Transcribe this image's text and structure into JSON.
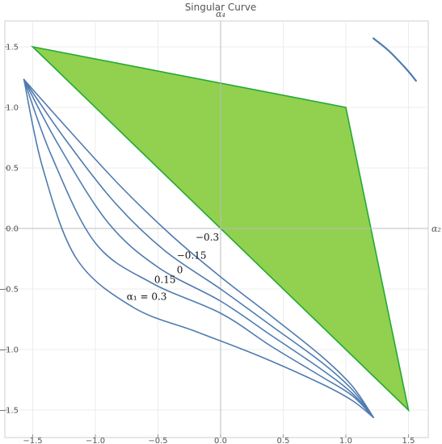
{
  "chart_data": {
    "type": "line",
    "title": "Singular Curve",
    "xlabel": "α₂",
    "ylabel": "α₄",
    "xlim": [
      -1.65,
      1.65
    ],
    "ylim": [
      -1.65,
      1.65
    ],
    "grid": true,
    "x_ticks": [
      {
        "value": -1.5,
        "label": "−1.5"
      },
      {
        "value": -1.0,
        "label": "−1.0"
      },
      {
        "value": -0.5,
        "label": "−0.5"
      },
      {
        "value": 0.0,
        "label": "0.0"
      },
      {
        "value": 0.5,
        "label": "0.5"
      },
      {
        "value": 1.0,
        "label": "1.0"
      },
      {
        "value": 1.5,
        "label": "1.5"
      }
    ],
    "y_ticks": [
      {
        "value": 1.5,
        "label": "1.5"
      },
      {
        "value": 1.0,
        "label": "1.0"
      },
      {
        "value": 0.5,
        "label": "0.5"
      },
      {
        "value": 0.0,
        "label": "0.0"
      },
      {
        "value": -0.5,
        "label": "−0.5"
      },
      {
        "value": -1.0,
        "label": "−1.0"
      },
      {
        "value": -1.5,
        "label": "−1.5"
      }
    ],
    "region": {
      "fill": "#92d050",
      "stroke": "#22aa33",
      "vertices": [
        [
          -1.5,
          1.5
        ],
        [
          1.0,
          1.0
        ],
        [
          1.5,
          -1.5
        ]
      ]
    },
    "line_color": "#4f7bb0",
    "series": [
      {
        "name": "−0.3",
        "points": [
          [
            -1.57,
            1.23
          ],
          [
            -1.2,
            0.8
          ],
          [
            -0.8,
            0.35
          ],
          [
            -0.4,
            -0.05
          ],
          [
            0.0,
            -0.4
          ],
          [
            0.4,
            -0.72
          ],
          [
            0.8,
            -1.05
          ],
          [
            1.05,
            -1.3
          ],
          [
            1.22,
            -1.56
          ]
        ]
      },
      {
        "name": "−0.15",
        "points": [
          [
            -1.57,
            1.23
          ],
          [
            -1.25,
            0.75
          ],
          [
            -0.85,
            0.22
          ],
          [
            -0.45,
            -0.18
          ],
          [
            0.0,
            -0.5
          ],
          [
            0.4,
            -0.8
          ],
          [
            0.8,
            -1.1
          ],
          [
            1.05,
            -1.33
          ],
          [
            1.22,
            -1.56
          ]
        ]
      },
      {
        "name": "0",
        "points": [
          [
            -1.57,
            1.23
          ],
          [
            -1.3,
            0.7
          ],
          [
            -0.9,
            0.05
          ],
          [
            -0.5,
            -0.32
          ],
          [
            0.0,
            -0.6
          ],
          [
            0.4,
            -0.88
          ],
          [
            0.8,
            -1.16
          ],
          [
            1.05,
            -1.36
          ],
          [
            1.22,
            -1.56
          ]
        ]
      },
      {
        "name": "0.15",
        "points": [
          [
            -1.57,
            1.23
          ],
          [
            -1.35,
            0.6
          ],
          [
            -1.0,
            -0.12
          ],
          [
            -0.55,
            -0.45
          ],
          [
            0.0,
            -0.7
          ],
          [
            0.4,
            -0.97
          ],
          [
            0.8,
            -1.22
          ],
          [
            1.05,
            -1.38
          ],
          [
            1.22,
            -1.56
          ]
        ]
      },
      {
        "name": "α₁ = 0.3",
        "points": [
          [
            -1.57,
            1.23
          ],
          [
            -1.42,
            0.5
          ],
          [
            -1.15,
            -0.25
          ],
          [
            -0.7,
            -0.65
          ],
          [
            -0.2,
            -0.85
          ],
          [
            0.3,
            -1.05
          ],
          [
            0.8,
            -1.28
          ],
          [
            1.05,
            -1.42
          ],
          [
            1.22,
            -1.56
          ]
        ]
      }
    ],
    "corner_curve": {
      "points": [
        [
          1.22,
          1.57
        ],
        [
          1.34,
          1.47
        ],
        [
          1.48,
          1.32
        ],
        [
          1.56,
          1.22
        ]
      ]
    },
    "annotations": [
      {
        "text": "−0.3",
        "x": -0.2,
        "y": -0.1
      },
      {
        "text": "−0.15",
        "x": -0.35,
        "y": -0.25
      },
      {
        "text": "0",
        "x": -0.35,
        "y": -0.37
      },
      {
        "text": "0.15",
        "x": -0.53,
        "y": -0.45
      },
      {
        "text": "α₁ = 0.3",
        "x": -0.75,
        "y": -0.59
      }
    ]
  }
}
